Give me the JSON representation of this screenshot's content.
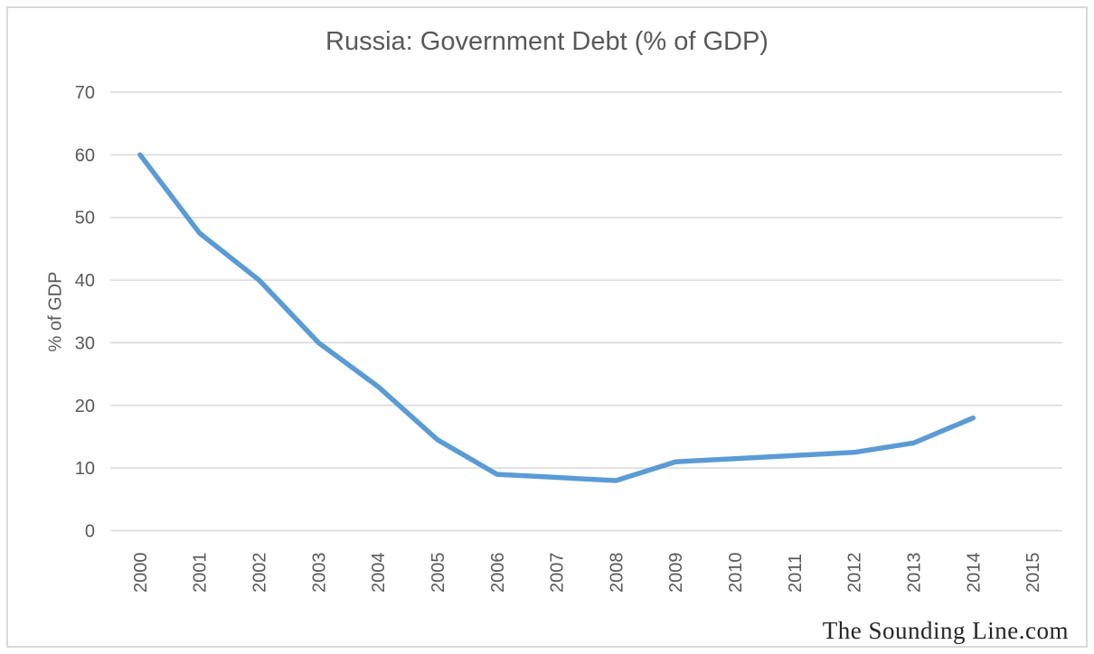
{
  "title": "Russia: Government Debt (% of GDP)",
  "y_axis_title": "% of GDP",
  "watermark": "The Sounding Line.com",
  "colors": {
    "line": "#5B9BD5",
    "gridline": "#D9D9D9",
    "border": "#D9D9D9",
    "text": "#595959",
    "watermark_text": "#262626",
    "background": "#FFFFFF"
  },
  "chart_data": {
    "type": "line",
    "title": "Russia: Government Debt (% of GDP)",
    "xlabel": "",
    "ylabel": "% of GDP",
    "categories": [
      "2000",
      "2001",
      "2002",
      "2003",
      "2004",
      "2005",
      "2006",
      "2007",
      "2008",
      "2009",
      "2010",
      "2011",
      "2012",
      "2013",
      "2014",
      "2015"
    ],
    "values": [
      60,
      47.5,
      40,
      30,
      23,
      14.5,
      9,
      8.5,
      8,
      11,
      11.5,
      12,
      12.5,
      14,
      18,
      null
    ],
    "ylim": [
      0,
      70
    ],
    "y_ticks": [
      0,
      10,
      20,
      30,
      40,
      50,
      60,
      70
    ],
    "grid": true,
    "legend": false
  }
}
